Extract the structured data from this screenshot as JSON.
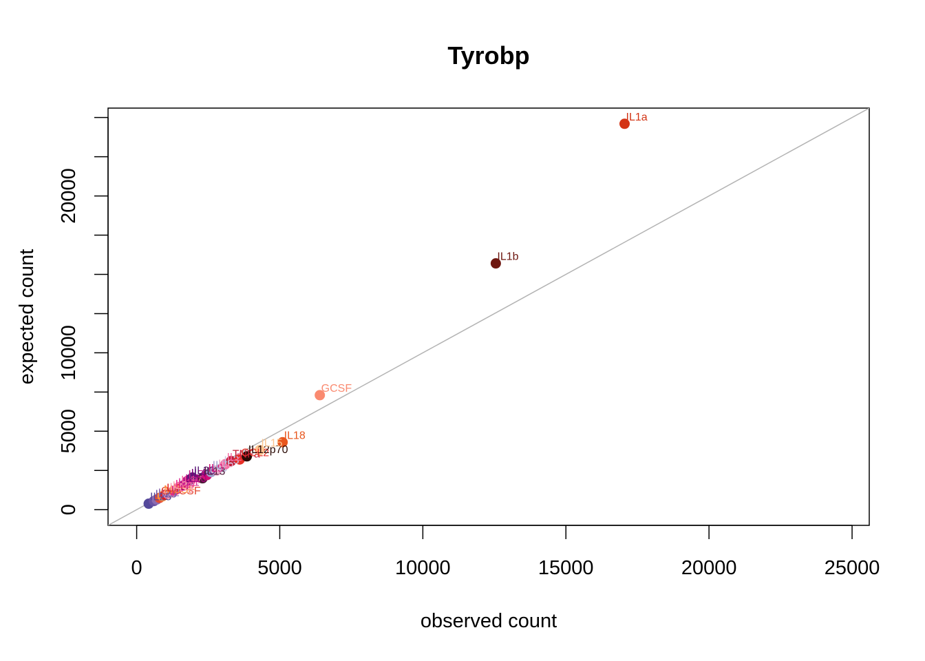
{
  "chart_data": {
    "type": "scatter",
    "title": "Tyrobp",
    "xlabel": "observed count",
    "ylabel": "expected count",
    "xlim": [
      -1000,
      25600
    ],
    "ylim": [
      -1000,
      25600
    ],
    "x_ticks": [
      0,
      5000,
      10000,
      15000,
      20000,
      25000
    ],
    "x_tick_labels": [
      "0",
      "5000",
      "10000",
      "15000",
      "20000",
      "25000"
    ],
    "y_ticks": [
      0,
      2500,
      5000,
      7500,
      10000,
      12500,
      15000,
      17500,
      20000,
      22500,
      25000
    ],
    "y_tick_labels": [
      "0",
      "",
      "5000",
      "",
      "10000",
      "",
      "",
      "",
      "20000",
      "",
      ""
    ],
    "reference_line": "y = x",
    "reference_line_color": "#b3b3b3",
    "grid": false,
    "points": [
      {
        "label": "IL1a",
        "x": 17050,
        "y": 24600,
        "color": "#d33415"
      },
      {
        "label": "IL1b",
        "x": 12550,
        "y": 15700,
        "color": "#6e1710"
      },
      {
        "label": "GCSF",
        "x": 6400,
        "y": 7300,
        "color": "#fa8a70"
      },
      {
        "label": "IL18",
        "x": 5100,
        "y": 4300,
        "color": "#e8561d"
      },
      {
        "label": "IL15",
        "x": 4300,
        "y": 3800,
        "color": "#fcc48f"
      },
      {
        "label": "IL12p70",
        "x": 3850,
        "y": 3400,
        "color": "#2a0a05"
      },
      {
        "label": "CCL2",
        "x": 3600,
        "y": 3200,
        "color": "#e83027"
      },
      {
        "label": "TNFa",
        "x": 3300,
        "y": 3100,
        "color": "#c01c37"
      },
      {
        "label": "IL2",
        "x": 3100,
        "y": 2900,
        "color": "#f56da4"
      },
      {
        "label": "IL3",
        "x": 3000,
        "y": 2700,
        "color": "#c9c7e2"
      },
      {
        "label": "IL6",
        "x": 2800,
        "y": 2500,
        "color": "#e9a6c8"
      },
      {
        "label": "IL7",
        "x": 2600,
        "y": 2400,
        "color": "#a1a0cc"
      },
      {
        "label": "IL9",
        "x": 2450,
        "y": 2200,
        "color": "#d20f77"
      },
      {
        "label": "IL13",
        "x": 2300,
        "y": 2000,
        "color": "#501b3a"
      },
      {
        "label": "IL33",
        "x": 1950,
        "y": 2050,
        "color": "#5c1c7a"
      },
      {
        "label": "IL4",
        "x": 1850,
        "y": 1900,
        "color": "#7a0177"
      },
      {
        "label": "IL5",
        "x": 1750,
        "y": 1800,
        "color": "#c51b8a"
      },
      {
        "label": "IL10",
        "x": 1650,
        "y": 1550,
        "color": "#ae017e"
      },
      {
        "label": "IL17",
        "x": 1500,
        "y": 1450,
        "color": "#f768a1"
      },
      {
        "label": "IL21",
        "x": 1400,
        "y": 1300,
        "color": "#dd3497"
      },
      {
        "label": "IL27",
        "x": 1300,
        "y": 1200,
        "color": "#e7298a"
      },
      {
        "label": "IL31",
        "x": 1200,
        "y": 1100,
        "color": "#fbb4b9"
      },
      {
        "label": "IFNg",
        "x": 1100,
        "y": 1000,
        "color": "#fa9fb5"
      },
      {
        "label": "LIF",
        "x": 1000,
        "y": 950,
        "color": "#e31a1c"
      },
      {
        "label": "MCSF",
        "x": 900,
        "y": 850,
        "color": "#fd8d3c"
      },
      {
        "label": "GMCSF",
        "x": 800,
        "y": 750,
        "color": "#e34a33"
      },
      {
        "label": "IL22",
        "x": 700,
        "y": 650,
        "color": "#8c6bb1"
      },
      {
        "label": "IL23",
        "x": 600,
        "y": 550,
        "color": "#6a51a3"
      },
      {
        "label": "IL25",
        "x": 420,
        "y": 380,
        "color": "#54499a"
      }
    ]
  }
}
